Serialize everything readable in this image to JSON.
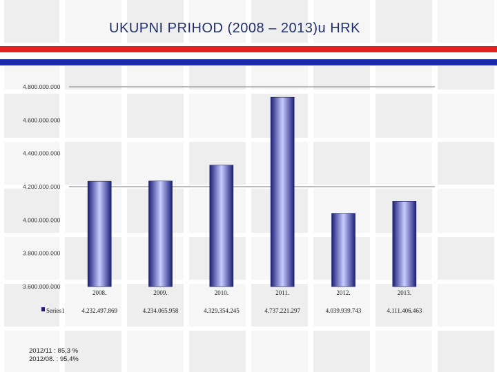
{
  "slide": {
    "title": "UKUPNI PRIHOD (2008 – 2013)u HRK",
    "notes": [
      "2012/11 : 85,3 %",
      "2012/08. : 95,4%"
    ]
  },
  "colors": {
    "stripe_red": "#e32121",
    "stripe_blue": "#1a2aa8",
    "bar_dark": "#1c1f78",
    "bar_light": "#c9ccff",
    "title": "#1f2f6b"
  },
  "chart_data": {
    "type": "bar",
    "title": "",
    "xlabel": "",
    "ylabel": "",
    "categories": [
      "2008.",
      "2009.",
      "2010.",
      "2011.",
      "2012.",
      "2013."
    ],
    "series": [
      {
        "name": "Series1",
        "values": [
          4232497869,
          4234065958,
          4329354245,
          4737221297,
          4039939743,
          4111406463
        ],
        "labels": [
          "4.232.497.869",
          "4.234.065.958",
          "4.329.354.245",
          "4.737.221.297",
          "4.039.939.743",
          "4.111.406.463"
        ]
      }
    ],
    "ylim": [
      3600000000,
      4800000000
    ],
    "yticks": [
      3600000000,
      3800000000,
      4000000000,
      4200000000,
      4400000000,
      4600000000,
      4800000000
    ],
    "ytick_labels": [
      "3.600.000.000",
      "3.800.000.000",
      "4.000.000.000",
      "4.200.000.000",
      "4.400.000.000",
      "4.600.000.000",
      "4.800.000.000"
    ],
    "gridlines_at": [
      4200000000,
      4800000000
    ],
    "legend": "bottom-left, inside data table"
  }
}
